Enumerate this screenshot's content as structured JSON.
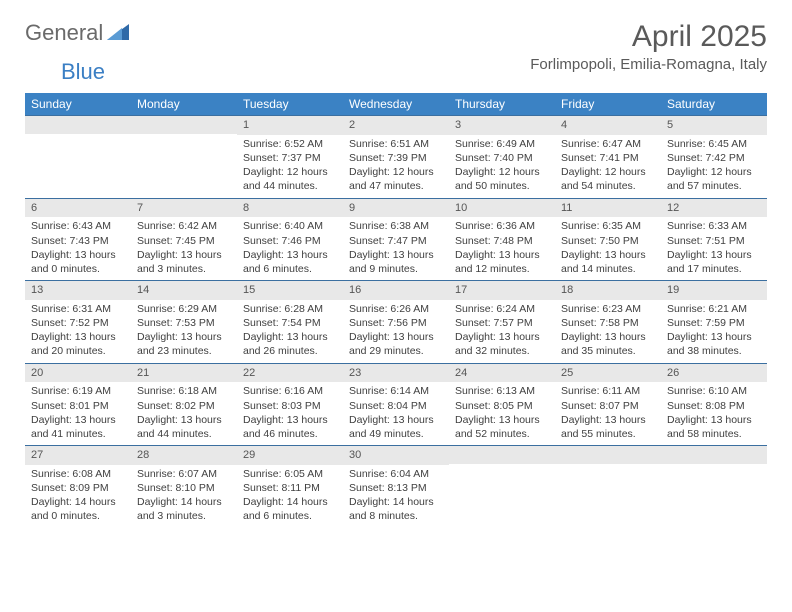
{
  "logo": {
    "text1": "General",
    "text2": "Blue"
  },
  "title": "April 2025",
  "location": "Forlimpopoli, Emilia-Romagna, Italy",
  "weekdays": [
    "Sunday",
    "Monday",
    "Tuesday",
    "Wednesday",
    "Thursday",
    "Friday",
    "Saturday"
  ],
  "colors": {
    "header_bg": "#3b82c4",
    "header_text": "#ffffff",
    "daynum_bg": "#e8e8e8",
    "border": "#3b6fa0",
    "body_text": "#404040",
    "logo_gray": "#6a6a6a",
    "logo_blue": "#3b7fc4"
  },
  "weeks": [
    [
      {
        "n": "",
        "sunrise": "",
        "sunset": "",
        "daylight": ""
      },
      {
        "n": "",
        "sunrise": "",
        "sunset": "",
        "daylight": ""
      },
      {
        "n": "1",
        "sunrise": "Sunrise: 6:52 AM",
        "sunset": "Sunset: 7:37 PM",
        "daylight": "Daylight: 12 hours and 44 minutes."
      },
      {
        "n": "2",
        "sunrise": "Sunrise: 6:51 AM",
        "sunset": "Sunset: 7:39 PM",
        "daylight": "Daylight: 12 hours and 47 minutes."
      },
      {
        "n": "3",
        "sunrise": "Sunrise: 6:49 AM",
        "sunset": "Sunset: 7:40 PM",
        "daylight": "Daylight: 12 hours and 50 minutes."
      },
      {
        "n": "4",
        "sunrise": "Sunrise: 6:47 AM",
        "sunset": "Sunset: 7:41 PM",
        "daylight": "Daylight: 12 hours and 54 minutes."
      },
      {
        "n": "5",
        "sunrise": "Sunrise: 6:45 AM",
        "sunset": "Sunset: 7:42 PM",
        "daylight": "Daylight: 12 hours and 57 minutes."
      }
    ],
    [
      {
        "n": "6",
        "sunrise": "Sunrise: 6:43 AM",
        "sunset": "Sunset: 7:43 PM",
        "daylight": "Daylight: 13 hours and 0 minutes."
      },
      {
        "n": "7",
        "sunrise": "Sunrise: 6:42 AM",
        "sunset": "Sunset: 7:45 PM",
        "daylight": "Daylight: 13 hours and 3 minutes."
      },
      {
        "n": "8",
        "sunrise": "Sunrise: 6:40 AM",
        "sunset": "Sunset: 7:46 PM",
        "daylight": "Daylight: 13 hours and 6 minutes."
      },
      {
        "n": "9",
        "sunrise": "Sunrise: 6:38 AM",
        "sunset": "Sunset: 7:47 PM",
        "daylight": "Daylight: 13 hours and 9 minutes."
      },
      {
        "n": "10",
        "sunrise": "Sunrise: 6:36 AM",
        "sunset": "Sunset: 7:48 PM",
        "daylight": "Daylight: 13 hours and 12 minutes."
      },
      {
        "n": "11",
        "sunrise": "Sunrise: 6:35 AM",
        "sunset": "Sunset: 7:50 PM",
        "daylight": "Daylight: 13 hours and 14 minutes."
      },
      {
        "n": "12",
        "sunrise": "Sunrise: 6:33 AM",
        "sunset": "Sunset: 7:51 PM",
        "daylight": "Daylight: 13 hours and 17 minutes."
      }
    ],
    [
      {
        "n": "13",
        "sunrise": "Sunrise: 6:31 AM",
        "sunset": "Sunset: 7:52 PM",
        "daylight": "Daylight: 13 hours and 20 minutes."
      },
      {
        "n": "14",
        "sunrise": "Sunrise: 6:29 AM",
        "sunset": "Sunset: 7:53 PM",
        "daylight": "Daylight: 13 hours and 23 minutes."
      },
      {
        "n": "15",
        "sunrise": "Sunrise: 6:28 AM",
        "sunset": "Sunset: 7:54 PM",
        "daylight": "Daylight: 13 hours and 26 minutes."
      },
      {
        "n": "16",
        "sunrise": "Sunrise: 6:26 AM",
        "sunset": "Sunset: 7:56 PM",
        "daylight": "Daylight: 13 hours and 29 minutes."
      },
      {
        "n": "17",
        "sunrise": "Sunrise: 6:24 AM",
        "sunset": "Sunset: 7:57 PM",
        "daylight": "Daylight: 13 hours and 32 minutes."
      },
      {
        "n": "18",
        "sunrise": "Sunrise: 6:23 AM",
        "sunset": "Sunset: 7:58 PM",
        "daylight": "Daylight: 13 hours and 35 minutes."
      },
      {
        "n": "19",
        "sunrise": "Sunrise: 6:21 AM",
        "sunset": "Sunset: 7:59 PM",
        "daylight": "Daylight: 13 hours and 38 minutes."
      }
    ],
    [
      {
        "n": "20",
        "sunrise": "Sunrise: 6:19 AM",
        "sunset": "Sunset: 8:01 PM",
        "daylight": "Daylight: 13 hours and 41 minutes."
      },
      {
        "n": "21",
        "sunrise": "Sunrise: 6:18 AM",
        "sunset": "Sunset: 8:02 PM",
        "daylight": "Daylight: 13 hours and 44 minutes."
      },
      {
        "n": "22",
        "sunrise": "Sunrise: 6:16 AM",
        "sunset": "Sunset: 8:03 PM",
        "daylight": "Daylight: 13 hours and 46 minutes."
      },
      {
        "n": "23",
        "sunrise": "Sunrise: 6:14 AM",
        "sunset": "Sunset: 8:04 PM",
        "daylight": "Daylight: 13 hours and 49 minutes."
      },
      {
        "n": "24",
        "sunrise": "Sunrise: 6:13 AM",
        "sunset": "Sunset: 8:05 PM",
        "daylight": "Daylight: 13 hours and 52 minutes."
      },
      {
        "n": "25",
        "sunrise": "Sunrise: 6:11 AM",
        "sunset": "Sunset: 8:07 PM",
        "daylight": "Daylight: 13 hours and 55 minutes."
      },
      {
        "n": "26",
        "sunrise": "Sunrise: 6:10 AM",
        "sunset": "Sunset: 8:08 PM",
        "daylight": "Daylight: 13 hours and 58 minutes."
      }
    ],
    [
      {
        "n": "27",
        "sunrise": "Sunrise: 6:08 AM",
        "sunset": "Sunset: 8:09 PM",
        "daylight": "Daylight: 14 hours and 0 minutes."
      },
      {
        "n": "28",
        "sunrise": "Sunrise: 6:07 AM",
        "sunset": "Sunset: 8:10 PM",
        "daylight": "Daylight: 14 hours and 3 minutes."
      },
      {
        "n": "29",
        "sunrise": "Sunrise: 6:05 AM",
        "sunset": "Sunset: 8:11 PM",
        "daylight": "Daylight: 14 hours and 6 minutes."
      },
      {
        "n": "30",
        "sunrise": "Sunrise: 6:04 AM",
        "sunset": "Sunset: 8:13 PM",
        "daylight": "Daylight: 14 hours and 8 minutes."
      },
      {
        "n": "",
        "sunrise": "",
        "sunset": "",
        "daylight": ""
      },
      {
        "n": "",
        "sunrise": "",
        "sunset": "",
        "daylight": ""
      },
      {
        "n": "",
        "sunrise": "",
        "sunset": "",
        "daylight": ""
      }
    ]
  ]
}
